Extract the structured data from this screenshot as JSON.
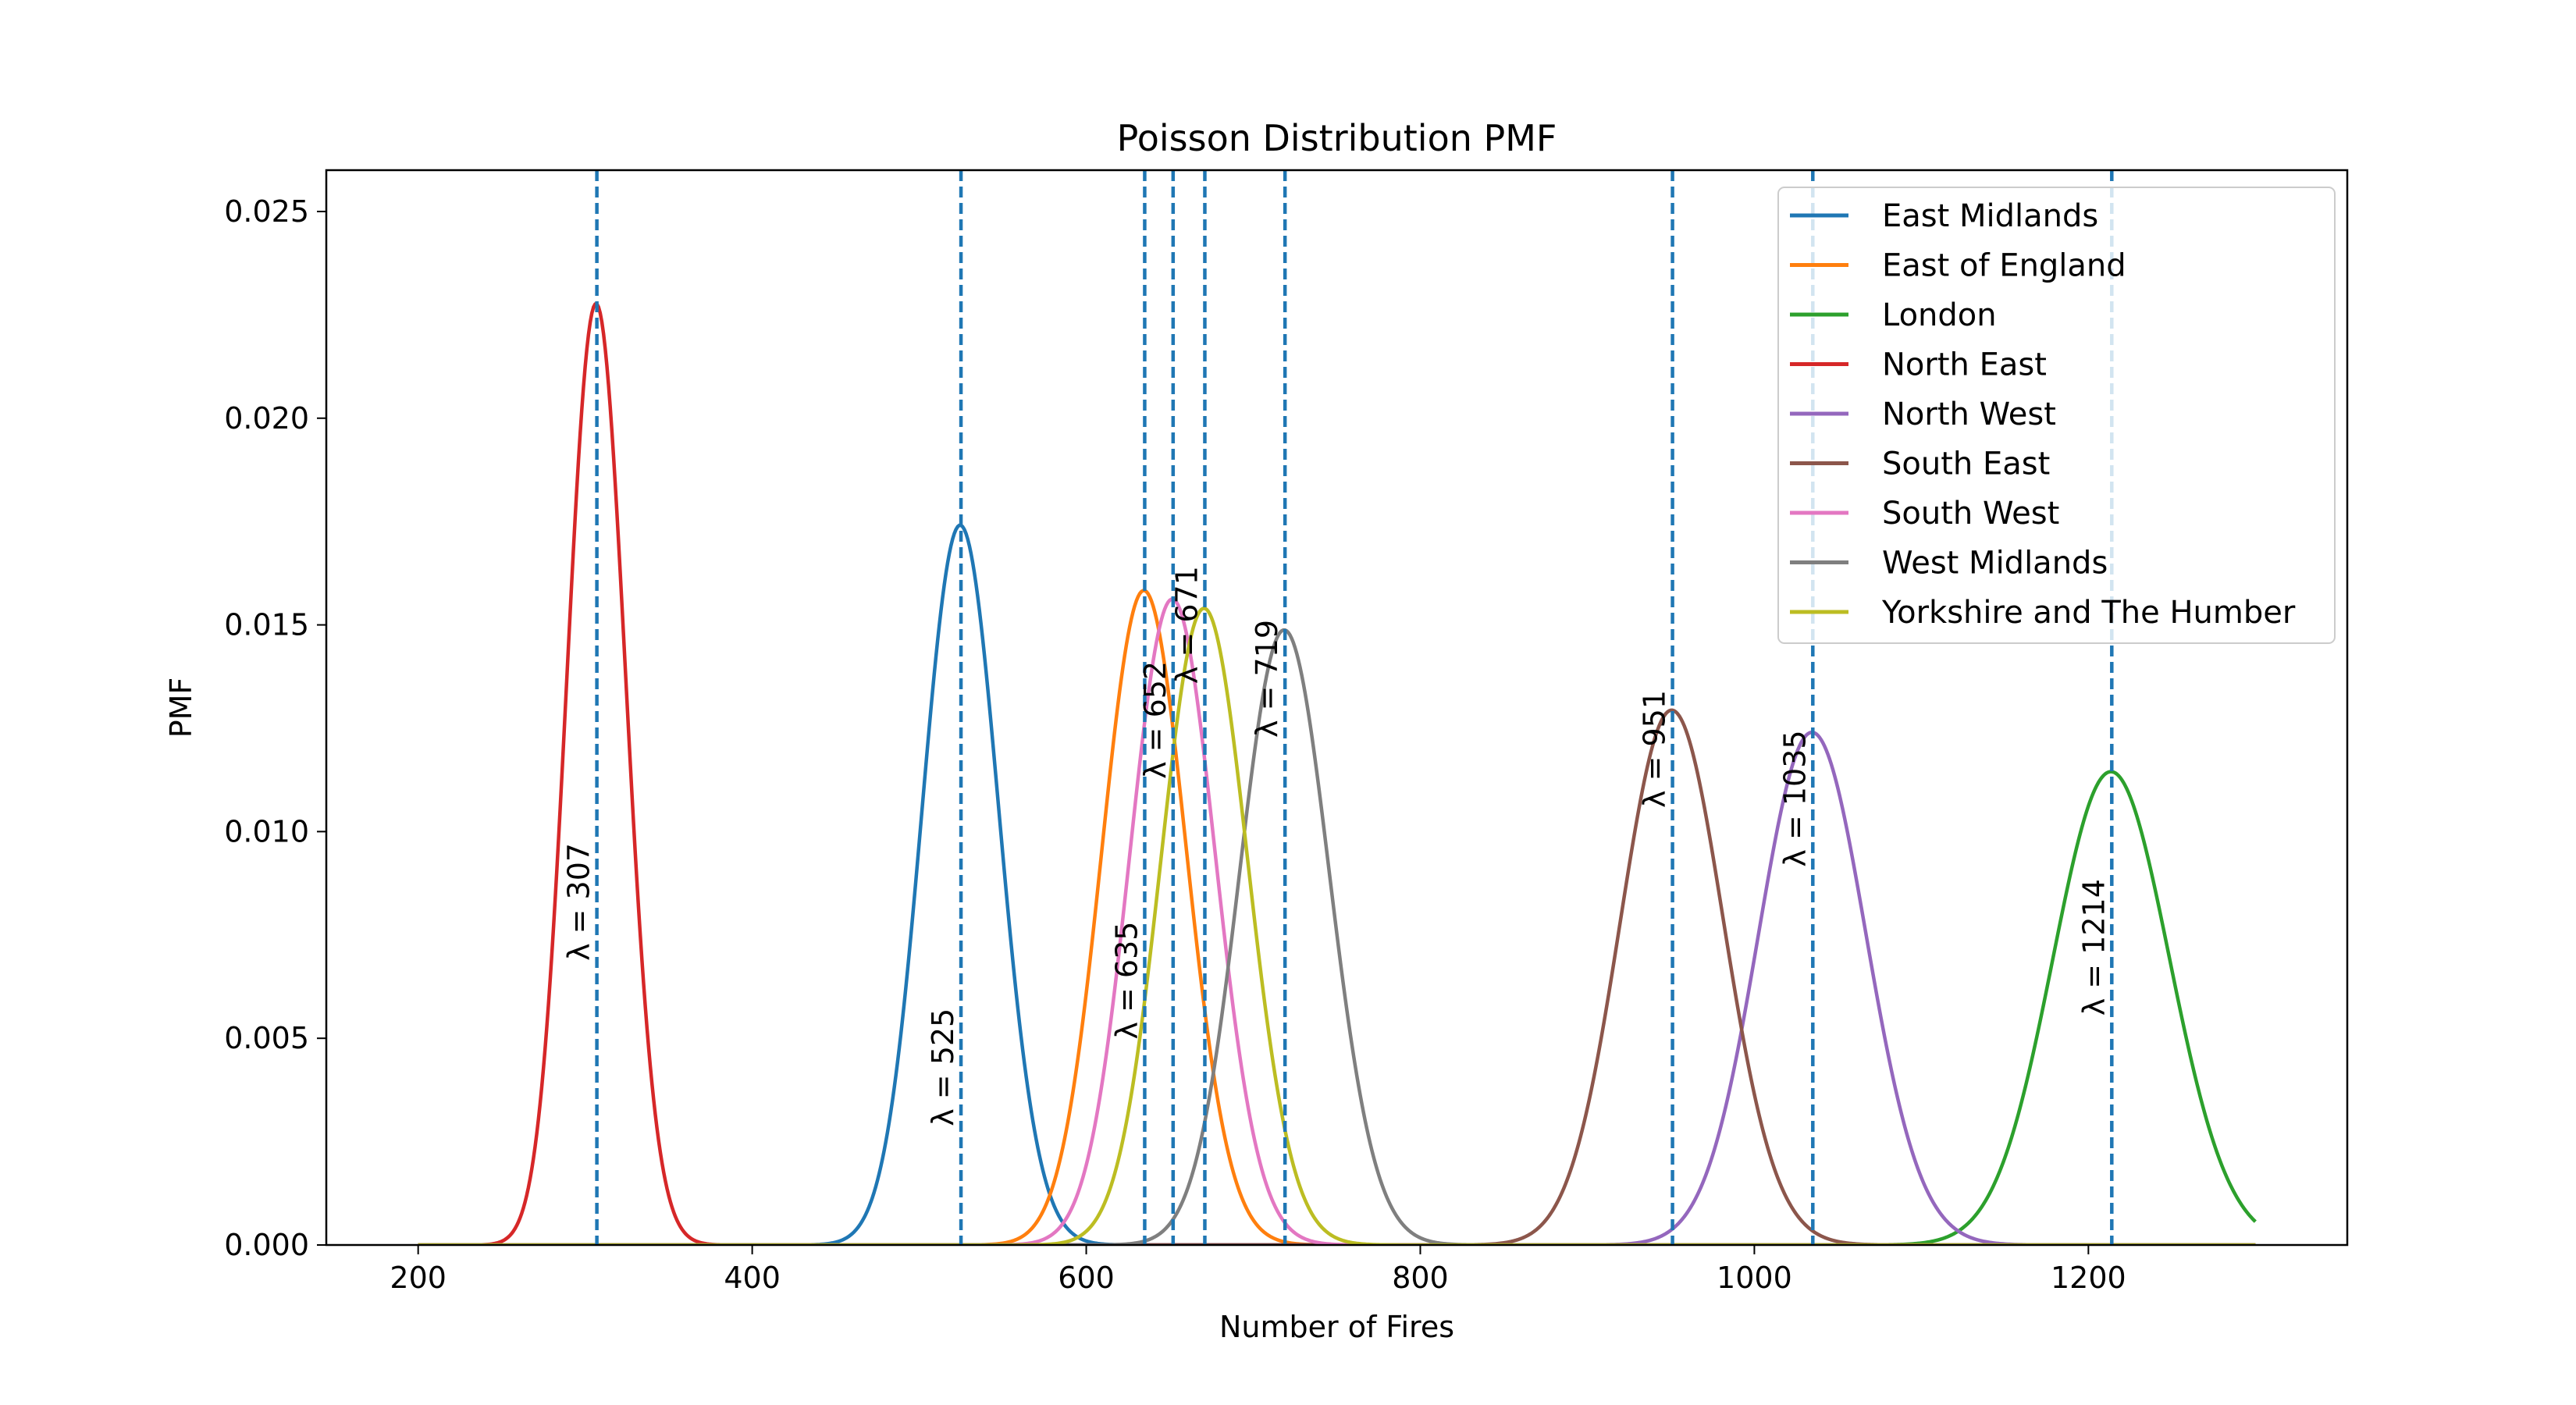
{
  "chart_data": {
    "type": "line",
    "title": "Poisson Distribution PMF",
    "xlabel": "Number of Fires",
    "ylabel": "PMF",
    "xlim": [
      145,
      1355
    ],
    "ylim": [
      0,
      0.026
    ],
    "x_range": [
      200,
      1300
    ],
    "xticks": [
      "200",
      "400",
      "600",
      "800",
      "1000",
      "1200"
    ],
    "yticks": [
      "0.000",
      "0.005",
      "0.010",
      "0.015",
      "0.020",
      "0.025"
    ],
    "legend_position": "top-right",
    "grid": false,
    "series": [
      {
        "name": "East Midlands",
        "lambda": 525,
        "color": "#1f77b4"
      },
      {
        "name": "East of England",
        "lambda": 635,
        "color": "#ff7f0e"
      },
      {
        "name": "London",
        "lambda": 1214,
        "color": "#2ca02c"
      },
      {
        "name": "North East",
        "lambda": 307,
        "color": "#d62728"
      },
      {
        "name": "North West",
        "lambda": 1035,
        "color": "#9467bd"
      },
      {
        "name": "South East",
        "lambda": 951,
        "color": "#8c564b"
      },
      {
        "name": "South West",
        "lambda": 652,
        "color": "#e377c2"
      },
      {
        "name": "West Midlands",
        "lambda": 719,
        "color": "#7f7f7f"
      },
      {
        "name": "Yorkshire and The Humber",
        "lambda": 671,
        "color": "#bcbd22"
      }
    ],
    "vlines": [
      {
        "x": 307,
        "label": "λ = 307",
        "label_y": 0.0083
      },
      {
        "x": 525,
        "label": "λ = 525",
        "label_y": 0.0043
      },
      {
        "x": 635,
        "label": "λ = 635",
        "label_y": 0.0064
      },
      {
        "x": 652,
        "label": "λ = 652",
        "label_y": 0.0127
      },
      {
        "x": 671,
        "label": "λ = 671",
        "label_y": 0.015
      },
      {
        "x": 719,
        "label": "λ = 719",
        "label_y": 0.0137
      },
      {
        "x": 951,
        "label": "λ = 951",
        "label_y": 0.012
      },
      {
        "x": 1035,
        "label": "λ = 1035",
        "label_y": 0.0108
      },
      {
        "x": 1214,
        "label": "λ = 1214",
        "label_y": 0.0072
      }
    ],
    "vline_color": "#1f77b4"
  }
}
